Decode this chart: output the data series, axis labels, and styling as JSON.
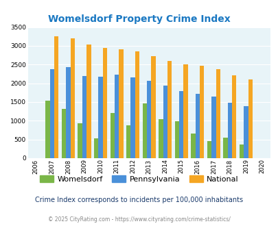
{
  "title": "Womelsdorf Property Crime Index",
  "years_all": [
    2006,
    2007,
    2008,
    2009,
    2010,
    2011,
    2012,
    2013,
    2014,
    2015,
    2016,
    2017,
    2018,
    2019,
    2020
  ],
  "womelsdorf": [
    1530,
    1310,
    940,
    530,
    1210,
    880,
    1470,
    1050,
    980,
    650,
    450,
    540,
    360
  ],
  "pennsylvania": [
    2370,
    2430,
    2200,
    2170,
    2240,
    2160,
    2070,
    1940,
    1800,
    1720,
    1640,
    1480,
    1390
  ],
  "national": [
    3260,
    3200,
    3040,
    2950,
    2910,
    2860,
    2730,
    2600,
    2500,
    2470,
    2380,
    2210,
    2110
  ],
  "data_years": [
    2007,
    2008,
    2009,
    2010,
    2011,
    2012,
    2013,
    2014,
    2015,
    2016,
    2017,
    2018,
    2019
  ],
  "womelsdorf_color": "#7ab648",
  "pennsylvania_color": "#4a90d9",
  "national_color": "#f5a623",
  "bg_color": "#e8f4f8",
  "ylim": [
    0,
    3500
  ],
  "yticks": [
    0,
    500,
    1000,
    1500,
    2000,
    2500,
    3000,
    3500
  ],
  "subtitle": "Crime Index corresponds to incidents per 100,000 inhabitants",
  "footer": "© 2025 CityRating.com - https://www.cityrating.com/crime-statistics/",
  "title_color": "#1a78c2",
  "subtitle_color": "#1a3a6b",
  "footer_color": "#888888",
  "legend_labels": [
    "Womelsdorf",
    "Pennsylvania",
    "National"
  ]
}
